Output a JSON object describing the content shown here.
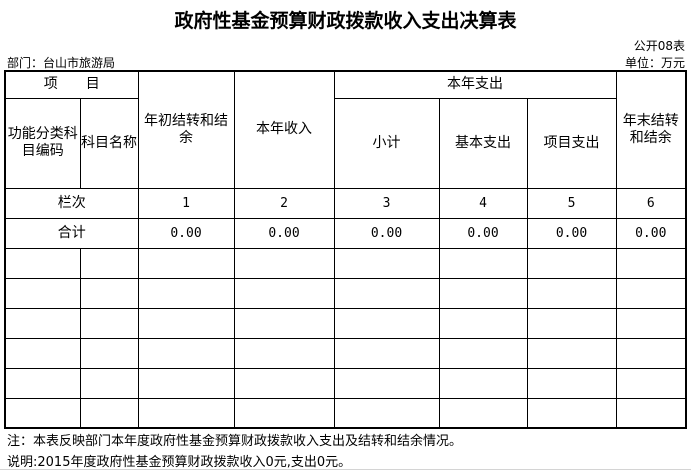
{
  "title": "政府性基金预算财政拨款收入支出决算表",
  "form_no": "公开08表",
  "department": "部门：台山市旅游局",
  "unit": "单位：万元",
  "header": {
    "item": "项　　目",
    "func_code": "功能分类科目编码",
    "subject_name": "科目名称",
    "begin_balance": "年初结转和结余",
    "income": "本年收入",
    "expense_group": "本年支出",
    "subtotal": "小计",
    "basic": "基本支出",
    "project": "项目支出",
    "end_balance": "年末结转和结余"
  },
  "column_index": {
    "label": "栏次",
    "values": [
      "1",
      "2",
      "3",
      "4",
      "5",
      "6"
    ]
  },
  "total": {
    "label": "合计",
    "values": [
      "0.00",
      "0.00",
      "0.00",
      "0.00",
      "0.00",
      "0.00"
    ]
  },
  "notes": [
    "注：本表反映部门本年度政府性基金预算财政拨款收入支出及结转和结余情况。",
    "说明:2015年度政府性基金预算财政拨款收入0元,支出0元。"
  ]
}
